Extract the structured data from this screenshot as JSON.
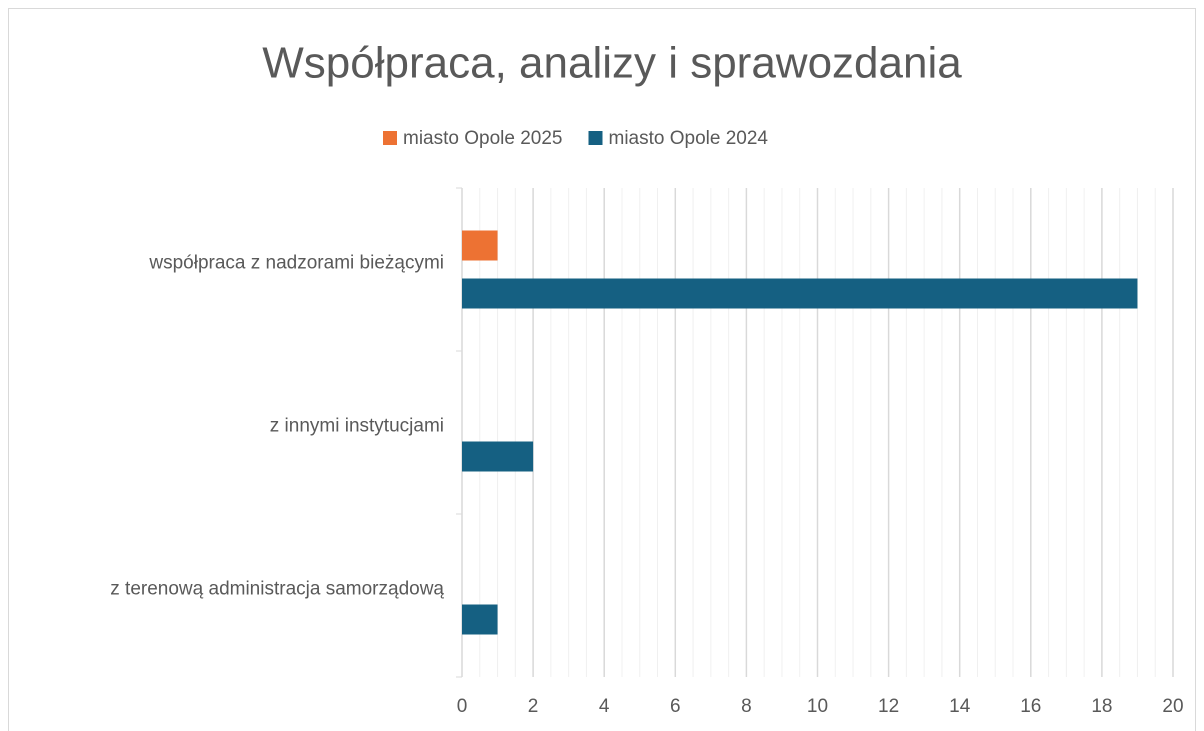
{
  "chart_data": {
    "type": "bar",
    "orientation": "horizontal",
    "title": "Współpraca, analizy i sprawozdania",
    "categories": [
      "współpraca z nadzorami bieżącymi",
      "z innymi instytucjami",
      "z terenową administracja samorządową"
    ],
    "series": [
      {
        "name": "miasto Opole 2025",
        "color": "#ed7233",
        "values": [
          1,
          0,
          0
        ]
      },
      {
        "name": "miasto Opole 2024",
        "color": "#156082",
        "values": [
          19,
          2,
          1
        ]
      }
    ],
    "xlim": [
      0,
      20
    ],
    "xticks": [
      0,
      2,
      4,
      6,
      8,
      10,
      12,
      14,
      16,
      18,
      20
    ],
    "grid": true,
    "legend": "top"
  }
}
